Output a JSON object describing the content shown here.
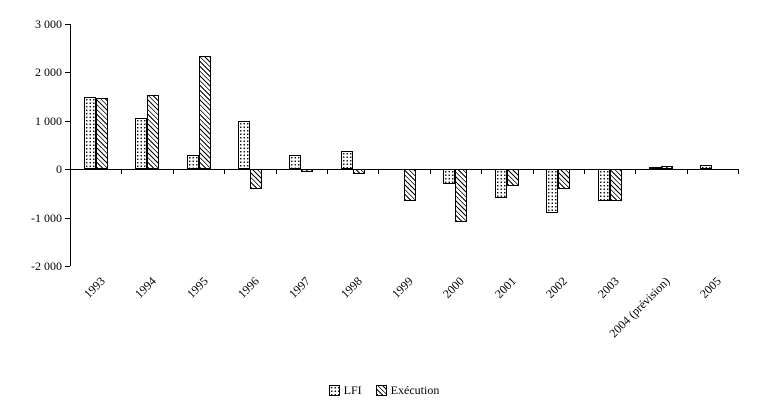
{
  "chart_data": {
    "type": "bar",
    "title": "",
    "xlabel": "",
    "ylabel": "",
    "categories": [
      "1993",
      "1994",
      "1995",
      "1996",
      "1997",
      "1998",
      "1999",
      "2000",
      "2001",
      "2002",
      "2003",
      "2004 (prévision)",
      "2005"
    ],
    "series": [
      {
        "name": "LFI",
        "pattern": "dots",
        "values": [
          1500,
          1050,
          300,
          1000,
          300,
          380,
          0,
          -300,
          -600,
          -900,
          -650,
          40,
          80
        ]
      },
      {
        "name": "Exécution",
        "pattern": "hatch",
        "values": [
          1480,
          1530,
          2350,
          -400,
          -50,
          -100,
          -650,
          -1100,
          -350,
          -420,
          -650,
          60,
          0
        ]
      }
    ],
    "ylim": [
      -2000,
      3000
    ],
    "ytick_step": 1000,
    "ytick_labels": [
      "3 000",
      "2 000",
      "1 000",
      "0",
      "-1 000",
      "-2 000"
    ],
    "grid": false,
    "legend_position": "bottom",
    "colors": {
      "line": "#000000",
      "background": "#ffffff"
    }
  }
}
